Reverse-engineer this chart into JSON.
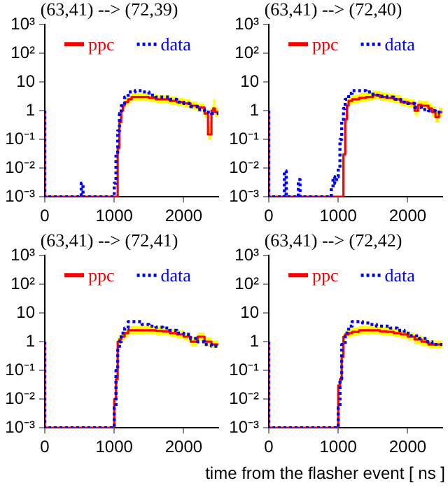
{
  "chart_data": [
    {
      "type": "step",
      "title": "(63,41) --> (72,39)",
      "xlim": [
        0,
        2500
      ],
      "xticks": [
        0,
        1000,
        2000
      ],
      "ylim": [
        0.001,
        1000
      ],
      "yticks": [
        {
          "value": 1000,
          "label": "10³"
        },
        {
          "value": 100,
          "label": "10²"
        },
        {
          "value": 10,
          "label": "10"
        },
        {
          "value": 1,
          "label": "1"
        },
        {
          "value": 0.1,
          "label": "10⁻¹"
        },
        {
          "value": 0.01,
          "label": "10⁻²"
        },
        {
          "value": 0.001,
          "label": "10⁻³"
        }
      ],
      "log": "y",
      "legend": "top",
      "grid": false,
      "series": [
        {
          "name": "ppc",
          "color": "#ff0000",
          "line_style": "solid",
          "x": [
            0,
            25,
            1050,
            1075,
            1100,
            1125,
            1150,
            1200,
            1250,
            1300,
            1400,
            1500,
            1600,
            1700,
            1800,
            1900,
            2000,
            2100,
            2200,
            2300,
            2350,
            2400,
            2425,
            2450,
            2500
          ],
          "values": [
            1,
            0.001,
            0.001,
            0.05,
            0.4,
            1,
            1.5,
            2,
            2.5,
            3,
            3,
            3,
            2.8,
            2.5,
            2.5,
            2.2,
            2,
            1.8,
            1.5,
            1.3,
            0.8,
            0.15,
            1,
            1.2,
            0.9
          ],
          "lower": [
            null,
            null,
            null,
            0.03,
            0.3,
            0.7,
            1.1,
            1.5,
            1.9,
            2.2,
            2.2,
            2.2,
            2,
            1.8,
            1.8,
            1.6,
            1.5,
            1.3,
            1.1,
            0.9,
            0.6,
            0.1,
            0.7,
            0.9,
            0.6
          ],
          "upper": [
            null,
            null,
            null,
            0.08,
            0.6,
            1.4,
            2.1,
            2.8,
            3.5,
            4.2,
            4.2,
            4.2,
            4,
            3.5,
            3.5,
            3.1,
            2.8,
            2.5,
            2.1,
            1.8,
            1.1,
            0.3,
            1.4,
            2.5,
            1.3
          ]
        },
        {
          "name": "data",
          "color": "#0000ff",
          "line_style": "dotted",
          "x": [
            0,
            25,
            525,
            550,
            575,
            1000,
            1025,
            1050,
            1075,
            1100,
            1150,
            1200,
            1300,
            1400,
            1500,
            1600,
            1700,
            1800,
            1900,
            2000,
            2100,
            2200,
            2300,
            2400,
            2500
          ],
          "values": [
            1,
            0.001,
            0.001,
            0.003,
            0.001,
            0.001,
            0.003,
            0.03,
            0.2,
            0.8,
            1.5,
            3,
            4.5,
            5,
            4.5,
            3.5,
            3,
            3,
            2.5,
            2,
            1.8,
            1.4,
            1.1,
            0.9,
            0.8
          ]
        }
      ]
    },
    {
      "type": "step",
      "title": "(63,41) --> (72,40)",
      "xlim": [
        0,
        2500
      ],
      "xticks": [
        0,
        1000,
        2000
      ],
      "ylim": [
        0.001,
        1000
      ],
      "yticks": [
        {
          "value": 1000,
          "label": "10³"
        },
        {
          "value": 100,
          "label": "10²"
        },
        {
          "value": 10,
          "label": "10"
        },
        {
          "value": 1,
          "label": "1"
        },
        {
          "value": 0.1,
          "label": "10⁻¹"
        },
        {
          "value": 0.01,
          "label": "10⁻²"
        },
        {
          "value": 0.001,
          "label": "10⁻³"
        }
      ],
      "log": "y",
      "legend": "top",
      "grid": false,
      "series": [
        {
          "name": "ppc",
          "color": "#ff0000",
          "line_style": "solid",
          "x": [
            0,
            25,
            1075,
            1100,
            1125,
            1150,
            1200,
            1300,
            1400,
            1500,
            1600,
            1700,
            1800,
            1900,
            2000,
            2100,
            2150,
            2200,
            2300,
            2350,
            2400,
            2450,
            2500
          ],
          "values": [
            1,
            0.001,
            0.001,
            0.03,
            0.5,
            1.5,
            2.2,
            2.5,
            2.8,
            3,
            3.5,
            3,
            2.8,
            2.5,
            2,
            1.8,
            1,
            1.6,
            1.5,
            1.2,
            0.9,
            0.6,
            0.9
          ],
          "lower": [
            null,
            null,
            null,
            0.02,
            0.35,
            1.1,
            1.6,
            1.8,
            2,
            2.2,
            2.5,
            2.2,
            2,
            1.8,
            1.5,
            1.3,
            0.7,
            1.2,
            1.1,
            0.9,
            0.6,
            0.4,
            0.6
          ],
          "upper": [
            null,
            null,
            null,
            0.05,
            0.8,
            2.2,
            3.2,
            3.6,
            4.2,
            4.6,
            5,
            4.3,
            4,
            3.5,
            2.8,
            2.5,
            1.5,
            2.3,
            2.2,
            1.8,
            1.4,
            1,
            1.3
          ]
        },
        {
          "name": "data",
          "color": "#0000ff",
          "line_style": "dotted",
          "x": [
            0,
            25,
            225,
            250,
            275,
            425,
            450,
            475,
            900,
            925,
            950,
            975,
            1000,
            1025,
            1050,
            1075,
            1100,
            1150,
            1200,
            1300,
            1400,
            1500,
            1600,
            1700,
            1800,
            1900,
            2000,
            2100,
            2200,
            2300,
            2400,
            2500
          ],
          "values": [
            1,
            0.001,
            0.001,
            0.008,
            0.001,
            0.001,
            0.004,
            0.001,
            0.001,
            0.002,
            0.005,
            0.003,
            0.005,
            0.01,
            0.1,
            0.5,
            1.2,
            2.5,
            4,
            5,
            5,
            4.5,
            3.5,
            3.2,
            3,
            2.5,
            2,
            1.8,
            1.3,
            1.1,
            1,
            0.9
          ]
        }
      ]
    },
    {
      "type": "step",
      "title": "(63,41) --> (72,41)",
      "xlim": [
        0,
        2500
      ],
      "xticks": [
        0,
        1000,
        2000
      ],
      "ylim": [
        0.001,
        1000
      ],
      "yticks": [
        {
          "value": 1000,
          "label": "10³"
        },
        {
          "value": 100,
          "label": "10²"
        },
        {
          "value": 10,
          "label": "10"
        },
        {
          "value": 1,
          "label": "1"
        },
        {
          "value": 0.1,
          "label": "10⁻¹"
        },
        {
          "value": 0.01,
          "label": "10⁻²"
        },
        {
          "value": 0.001,
          "label": "10⁻³"
        }
      ],
      "log": "y",
      "legend": "top",
      "grid": false,
      "series": [
        {
          "name": "ppc",
          "color": "#ff0000",
          "line_style": "solid",
          "x": [
            0,
            25,
            1000,
            1025,
            1050,
            1075,
            1100,
            1150,
            1200,
            1300,
            1400,
            1500,
            1600,
            1700,
            1800,
            1900,
            2000,
            2100,
            2200,
            2300,
            2400,
            2500
          ],
          "values": [
            1,
            0.001,
            0.001,
            0.01,
            0.05,
            1,
            1.2,
            1.5,
            2,
            2.5,
            2.5,
            2.5,
            2.5,
            2.4,
            2.3,
            2,
            1.8,
            1.5,
            1,
            1.5,
            1,
            0.8
          ],
          "lower": [
            null,
            null,
            null,
            0.006,
            0.03,
            0.7,
            0.9,
            1.1,
            1.5,
            1.8,
            1.8,
            1.8,
            1.8,
            1.7,
            1.7,
            1.5,
            1.3,
            1.1,
            0.7,
            1.1,
            0.7,
            0.6
          ],
          "upper": [
            null,
            null,
            null,
            0.02,
            0.08,
            1.4,
            1.7,
            2.1,
            2.8,
            3.6,
            3.6,
            3.6,
            3.6,
            3.4,
            3.2,
            2.8,
            2.5,
            2.1,
            1.4,
            2.1,
            1.4,
            1.1
          ]
        },
        {
          "name": "data",
          "color": "#0000ff",
          "line_style": "dotted",
          "x": [
            0,
            25,
            1000,
            1025,
            1050,
            1075,
            1100,
            1150,
            1200,
            1300,
            1400,
            1500,
            1600,
            1700,
            1800,
            1900,
            2000,
            2100,
            2200,
            2300,
            2400,
            2500
          ],
          "values": [
            1,
            0.001,
            0.001,
            0.005,
            0.1,
            0.5,
            1,
            2,
            3,
            5,
            5,
            4,
            3.5,
            3.2,
            3,
            2.5,
            2,
            1.8,
            1.3,
            1,
            0.8,
            0.7
          ]
        }
      ]
    },
    {
      "type": "step",
      "title": "(63,41) --> (72,42)",
      "xlabel": "time from the flasher event [ ns ]",
      "xlim": [
        0,
        2500
      ],
      "xticks": [
        0,
        1000,
        2000
      ],
      "ylim": [
        0.001,
        1000
      ],
      "yticks": [
        {
          "value": 1000,
          "label": "10³"
        },
        {
          "value": 100,
          "label": "10²"
        },
        {
          "value": 10,
          "label": "10"
        },
        {
          "value": 1,
          "label": "1"
        },
        {
          "value": 0.1,
          "label": "10⁻¹"
        },
        {
          "value": 0.01,
          "label": "10⁻²"
        },
        {
          "value": 0.001,
          "label": "10⁻³"
        }
      ],
      "log": "y",
      "legend": "top",
      "grid": false,
      "series": [
        {
          "name": "ppc",
          "color": "#ff0000",
          "line_style": "solid",
          "x": [
            0,
            25,
            1000,
            1025,
            1050,
            1075,
            1100,
            1150,
            1200,
            1300,
            1400,
            1500,
            1600,
            1700,
            1800,
            1900,
            2000,
            2100,
            2200,
            2300,
            2400,
            2500
          ],
          "values": [
            1,
            0.001,
            0.001,
            0.03,
            0.05,
            0.3,
            1.5,
            1.8,
            2,
            2.2,
            2.5,
            2.5,
            2.5,
            2.3,
            2.2,
            2,
            1.8,
            1.5,
            1.2,
            1,
            0.8,
            0.8
          ],
          "lower": [
            null,
            null,
            null,
            0.02,
            0.035,
            0.2,
            1.1,
            1.3,
            1.5,
            1.6,
            1.8,
            1.8,
            1.8,
            1.7,
            1.6,
            1.5,
            1.3,
            1.1,
            0.8,
            0.7,
            0.6,
            0.6
          ],
          "upper": [
            null,
            null,
            null,
            0.05,
            0.08,
            0.5,
            2.1,
            2.5,
            2.8,
            3.1,
            3.6,
            3.6,
            3.6,
            3.3,
            3.1,
            2.8,
            2.5,
            2.1,
            1.7,
            1.4,
            1.1,
            1.1
          ]
        },
        {
          "name": "data",
          "color": "#0000ff",
          "line_style": "dotted",
          "x": [
            0,
            25,
            1000,
            1025,
            1050,
            1100,
            1150,
            1200,
            1250,
            1350,
            1450,
            1550,
            1650,
            1750,
            1850,
            1950,
            2050,
            2150,
            2250,
            2350,
            2450,
            2500
          ],
          "values": [
            1,
            0.001,
            0.001,
            0.005,
            0.05,
            0.8,
            2,
            3.5,
            5,
            5,
            4.5,
            4,
            3.5,
            3.5,
            3,
            2.5,
            2,
            1.6,
            1.3,
            1,
            0.8,
            0.8
          ]
        }
      ]
    }
  ]
}
